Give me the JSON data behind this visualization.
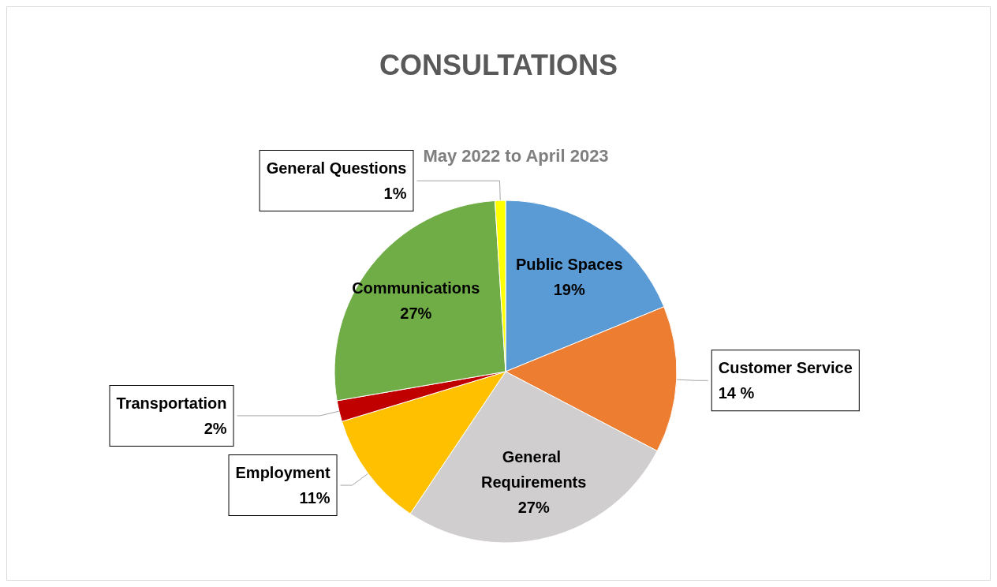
{
  "chart_data": {
    "type": "pie",
    "title": "CONSULTATIONS",
    "subtitle": "May 2022 to April 2023",
    "categories": [
      "Public Spaces",
      "Customer Service",
      "General Requirements",
      "Employment",
      "Transportation",
      "Communications",
      "General Questions"
    ],
    "values": [
      19,
      14,
      27,
      11,
      2,
      27,
      1
    ],
    "value_labels": [
      "19%",
      "14 %",
      "27%",
      "11%",
      "2%",
      "27%",
      "1%"
    ],
    "colors": [
      "#5b9bd5",
      "#ed7d31",
      "#d0cece",
      "#ffc000",
      "#c00000",
      "#70ad47",
      "#ffff00"
    ],
    "legend": false
  }
}
